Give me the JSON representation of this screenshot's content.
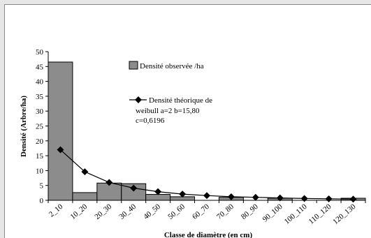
{
  "chart_data": {
    "type": "bar",
    "categories": [
      "2_10",
      "10_20",
      "20_30",
      "30_40",
      "40_50",
      "50_60",
      "60_70",
      "70_80",
      "80_90",
      "90_100",
      "100_110",
      "110_120",
      "120_130"
    ],
    "series": [
      {
        "name": "Densité observée /ha",
        "kind": "bar",
        "values": [
          46.5,
          2.6,
          5.8,
          5.6,
          2.0,
          1.2,
          0.0,
          1.0,
          0.0,
          0.7,
          0.0,
          0.0,
          0.7
        ]
      },
      {
        "name": "Densité théorique de weibull  a=2  b=15,80 c=0,6196",
        "kind": "line",
        "values": [
          17.0,
          9.6,
          6.0,
          4.1,
          2.9,
          2.1,
          1.6,
          1.2,
          1.0,
          0.8,
          0.6,
          0.5,
          0.4
        ]
      }
    ],
    "legend": {
      "bar_label": "Densité observée /ha",
      "line_label_lines": [
        "Densité théorique de",
        "weibull  a=2  b=15,80",
        "c=0,6196"
      ],
      "position": "top-right"
    },
    "xlabel": "Classe de diamètre (en cm)",
    "ylabel": "Densité (Arbre/ha)",
    "ylim": [
      0,
      50
    ],
    "yticks": [
      0,
      5,
      10,
      15,
      20,
      25,
      30,
      35,
      40,
      45,
      50
    ],
    "colors": {
      "bar": "#8c8c8c",
      "bar_edge": "#000000",
      "line": "#000000"
    }
  }
}
